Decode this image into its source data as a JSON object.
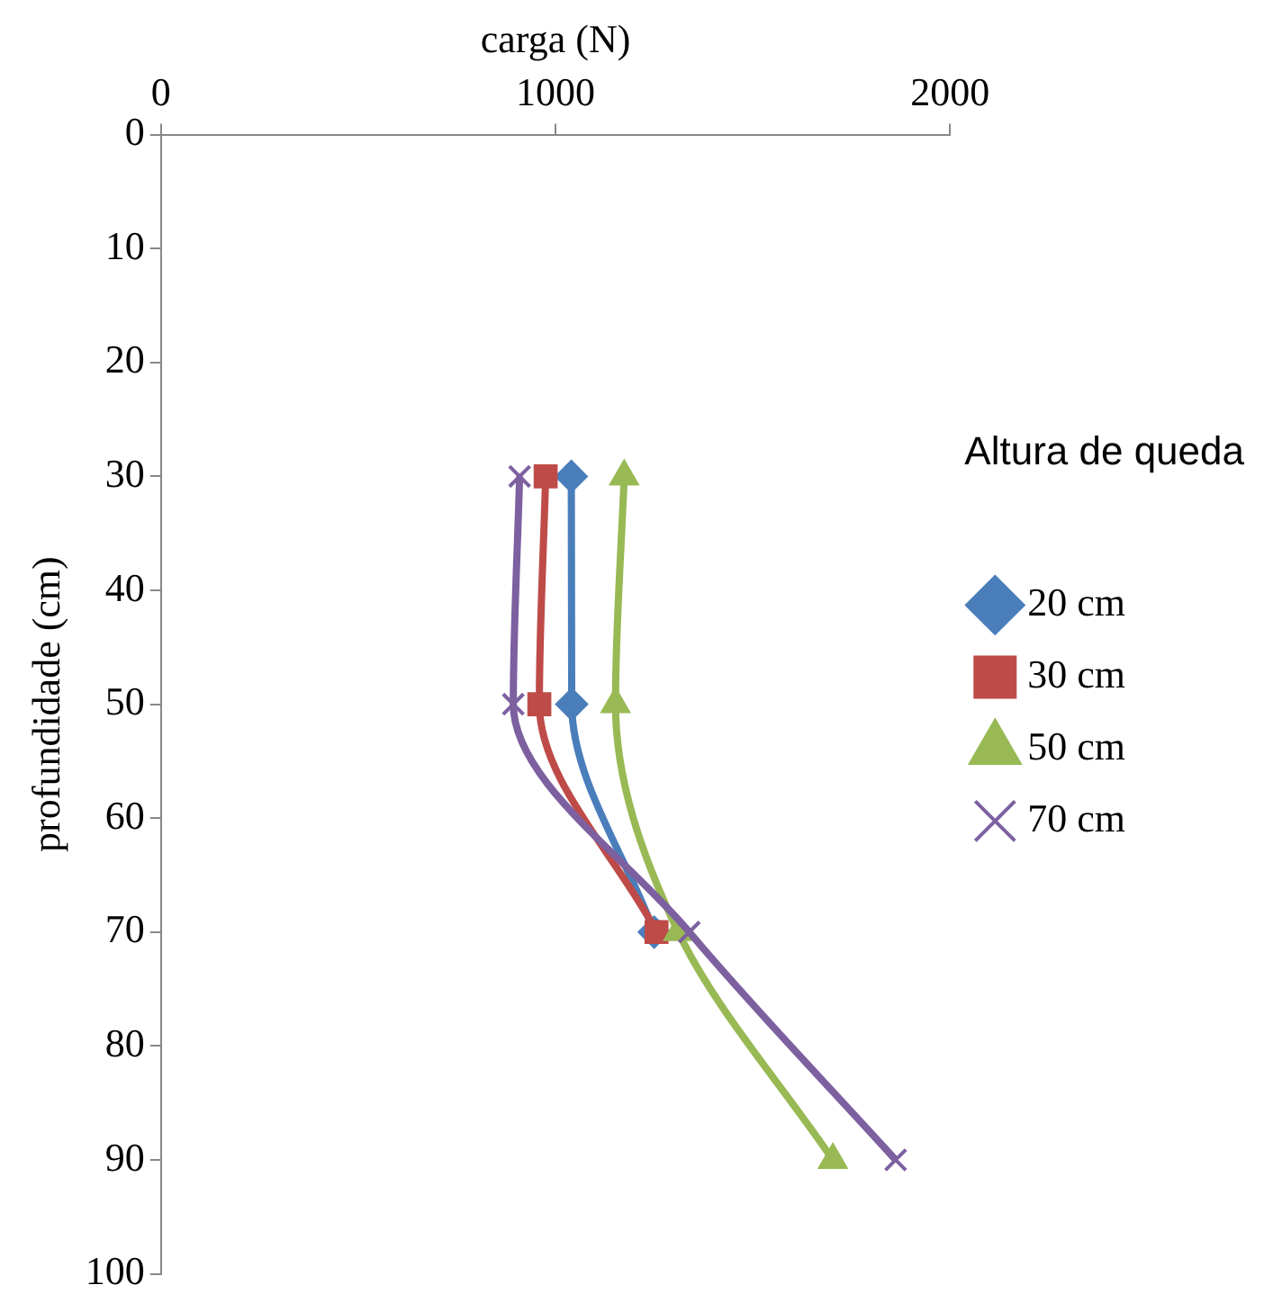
{
  "chart_data": {
    "type": "line",
    "xlabel": "carga (N)",
    "ylabel": "profundidade (cm)",
    "legend_title": "Altura de queda",
    "xlim": [
      0,
      2000
    ],
    "xticks": [
      0,
      1000,
      2000
    ],
    "ylim": [
      100,
      0
    ],
    "yticks": [
      0,
      10,
      20,
      30,
      40,
      50,
      60,
      70,
      80,
      90,
      100
    ],
    "grid": false,
    "legend": "right",
    "line_style": "solid",
    "series": [
      {
        "name": "20 cm",
        "color": "#4a7ebb",
        "marker": "diamond",
        "x": [
          1040,
          1041,
          1250
        ],
        "values": [
          30,
          50,
          70
        ]
      },
      {
        "name": "30 cm",
        "color": "#be4b48",
        "marker": "square",
        "x": [
          975,
          959,
          1256
        ],
        "values": [
          30,
          50,
          70
        ]
      },
      {
        "name": "50 cm",
        "color": "#98b954",
        "marker": "triangle",
        "x": [
          1174,
          1152,
          1311,
          1703
        ],
        "values": [
          30,
          50,
          70,
          90
        ]
      },
      {
        "name": "70 cm",
        "color": "#7d60a0",
        "marker": "cross",
        "x": [
          909,
          893,
          1339,
          1862
        ],
        "values": [
          30,
          50,
          70,
          90
        ]
      }
    ]
  }
}
